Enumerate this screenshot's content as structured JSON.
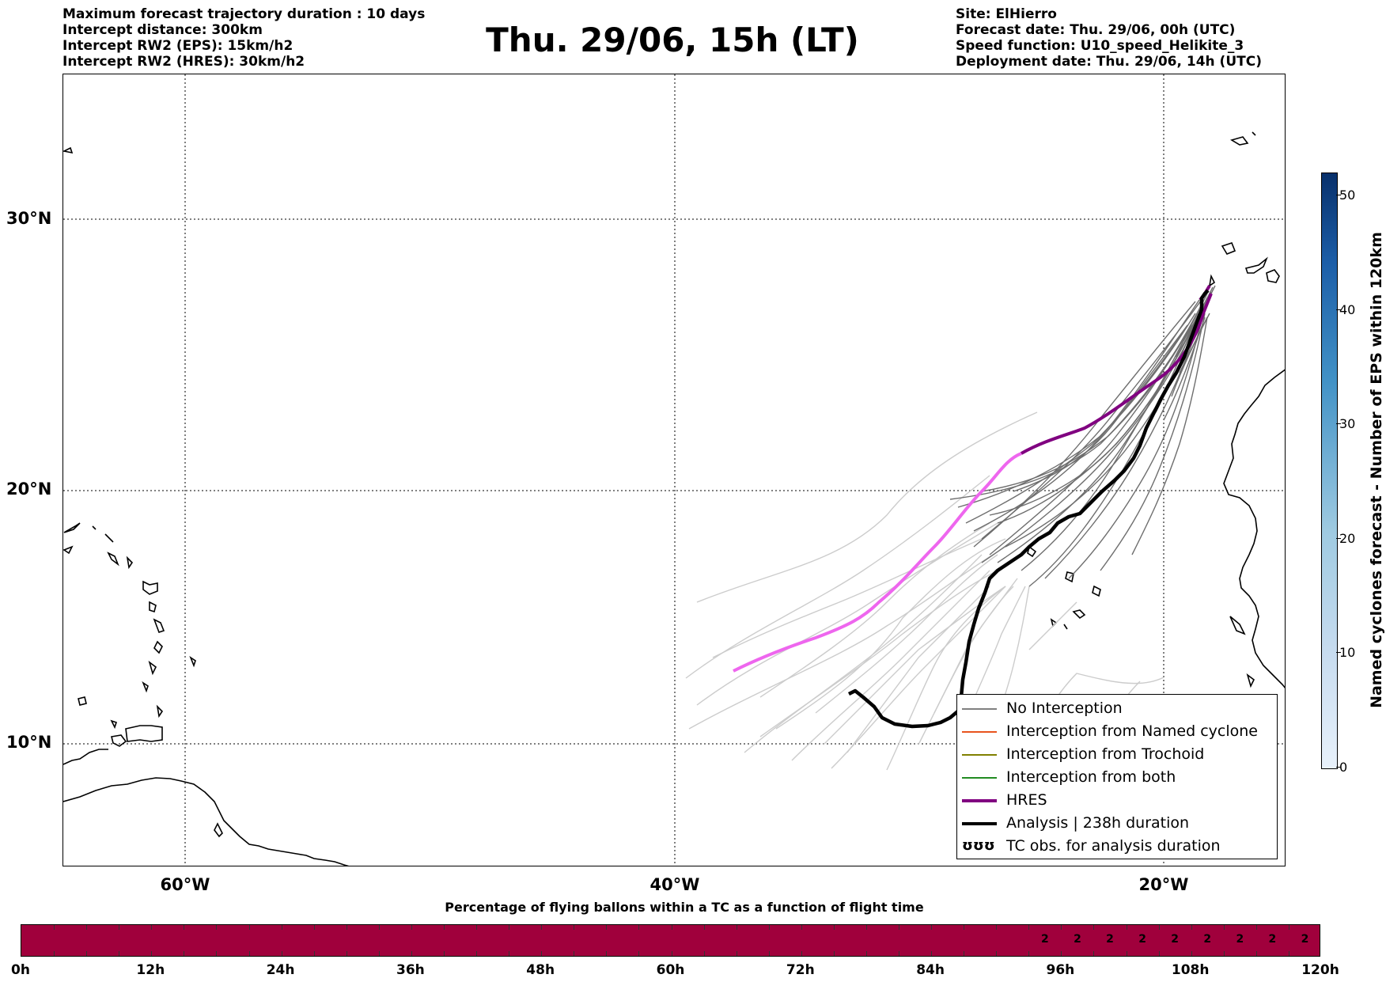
{
  "header": {
    "left_lines": [
      "Maximum forecast trajectory duration : 10 days",
      "Intercept distance: 300km",
      "Intercept RW2 (EPS):  15km/h2",
      "Intercept RW2 (HRES): 30km/h2"
    ],
    "title": "Thu. 29/06, 15h (LT)",
    "right_lines": [
      "Site: ElHierro",
      "Forecast date: Thu. 29/06, 00h (UTC)",
      "Speed function: U10_speed_Helikite_3",
      "Deployment date: Thu. 29/06, 14h (UTC)"
    ]
  },
  "map": {
    "lat_labels": [
      "30°N",
      "20°N",
      "10°N"
    ],
    "lon_labels": [
      "60°W",
      "40°W",
      "20°W"
    ],
    "colors": {
      "eps_no_interception_dark": "#6e6e6e",
      "eps_no_interception_light": "#cccccc",
      "hres": "#800080",
      "hres_forecast_pink": "#ee66ee",
      "analysis": "#000000",
      "coast": "#000000"
    }
  },
  "legend": {
    "items": [
      {
        "label": "No Interception",
        "color": "#808080",
        "width": 1.5
      },
      {
        "label": "Interception from Named cyclone",
        "color": "#e8541e",
        "width": 1.5
      },
      {
        "label": "Interception from Trochoid",
        "color": "#808000",
        "width": 1.5
      },
      {
        "label": "Interception from both",
        "color": "#228B22",
        "width": 1.5
      },
      {
        "label": "HRES",
        "color": "#800080",
        "width": 4
      },
      {
        "label": "Analysis | 238h duration",
        "color": "#000000",
        "width": 4
      },
      {
        "label": "TC obs. for analysis duration",
        "color": "#000000",
        "width": 0,
        "symbol": "ʊʊʊ"
      }
    ]
  },
  "colorbar": {
    "label": "Named cyclones forecast - Number of EPS within 120km",
    "ticks": [
      "50",
      "40",
      "30",
      "20",
      "10",
      "0"
    ],
    "tick_values": [
      50,
      40,
      30,
      20,
      10,
      0
    ],
    "max": 52
  },
  "time_bar": {
    "title": "Percentage of flying ballons within a TC as a function of flight time",
    "fill_color": "#a0003c",
    "tick_labels": [
      "0h",
      "12h",
      "24h",
      "36h",
      "48h",
      "60h",
      "72h",
      "84h",
      "96h",
      "108h",
      "120h"
    ],
    "segment_labels": [
      "2",
      "2",
      "2",
      "2",
      "2",
      "2",
      "2",
      "2",
      "2"
    ],
    "segment_label_start_hour": 93,
    "segment_label_step_hours": 3,
    "total_hours": 120
  }
}
